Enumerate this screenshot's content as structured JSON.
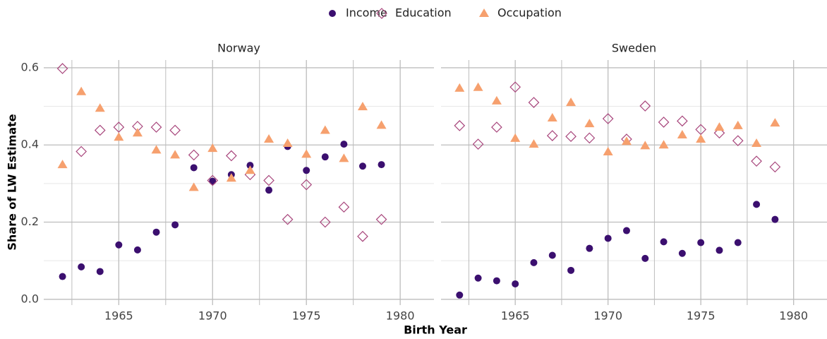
{
  "chart_data": {
    "type": "scatter",
    "x_label": "Birth Year",
    "y_label": "Share of LW Estimate",
    "x": [
      1962,
      1963,
      1964,
      1965,
      1966,
      1967,
      1968,
      1969,
      1970,
      1971,
      1972,
      1973,
      1974,
      1975,
      1976,
      1977,
      1978,
      1979
    ],
    "series": [
      {
        "name": "Income",
        "color": "#3b0f6f",
        "shape": "circle"
      },
      {
        "name": "Education",
        "color": "#a8467c",
        "shape": "diamond-open"
      },
      {
        "name": "Occupation",
        "color": "#f6a06e",
        "shape": "triangle"
      }
    ],
    "panels": [
      {
        "title": "Norway",
        "values": [
          [
            0.059,
            0.084,
            0.072,
            0.141,
            0.128,
            0.174,
            0.193,
            0.341,
            0.306,
            0.323,
            0.347,
            0.283,
            0.396,
            0.334,
            0.369,
            0.402,
            0.345,
            0.349
          ],
          [
            0.598,
            0.383,
            0.438,
            0.446,
            0.448,
            0.446,
            0.438,
            0.374,
            0.308,
            0.372,
            0.323,
            0.308,
            0.207,
            0.297,
            0.2,
            0.239,
            0.163,
            0.207
          ],
          [
            0.349,
            0.538,
            0.495,
            0.42,
            0.431,
            0.387,
            0.374,
            0.29,
            0.391,
            0.314,
            0.334,
            0.415,
            0.404,
            0.376,
            0.438,
            0.365,
            0.499,
            0.451
          ]
        ]
      },
      {
        "title": "Sweden",
        "values": [
          [
            0.011,
            0.055,
            0.048,
            0.04,
            0.095,
            0.114,
            0.075,
            0.132,
            0.158,
            0.178,
            0.106,
            0.149,
            0.119,
            0.147,
            0.127,
            0.147,
            0.246,
            0.207
          ],
          [
            0.45,
            0.402,
            0.446,
            0.55,
            0.51,
            0.424,
            0.422,
            0.418,
            0.468,
            0.415,
            0.501,
            0.459,
            0.462,
            0.44,
            0.431,
            0.411,
            0.358,
            0.343
          ],
          [
            0.547,
            0.549,
            0.514,
            0.417,
            0.402,
            0.47,
            0.51,
            0.455,
            0.382,
            0.409,
            0.398,
            0.4,
            0.426,
            0.415,
            0.446,
            0.45,
            0.404,
            0.457
          ]
        ]
      }
    ],
    "xlim": [
      1961.0,
      1981.8
    ],
    "ylim": [
      -0.015,
      0.62
    ],
    "xticks": [
      1965,
      1970,
      1975,
      1980
    ],
    "yticks": [
      {
        "value": 0,
        "label": "0.0"
      },
      0.2,
      0.4,
      0.6
    ],
    "grid": true,
    "legend": "top"
  }
}
